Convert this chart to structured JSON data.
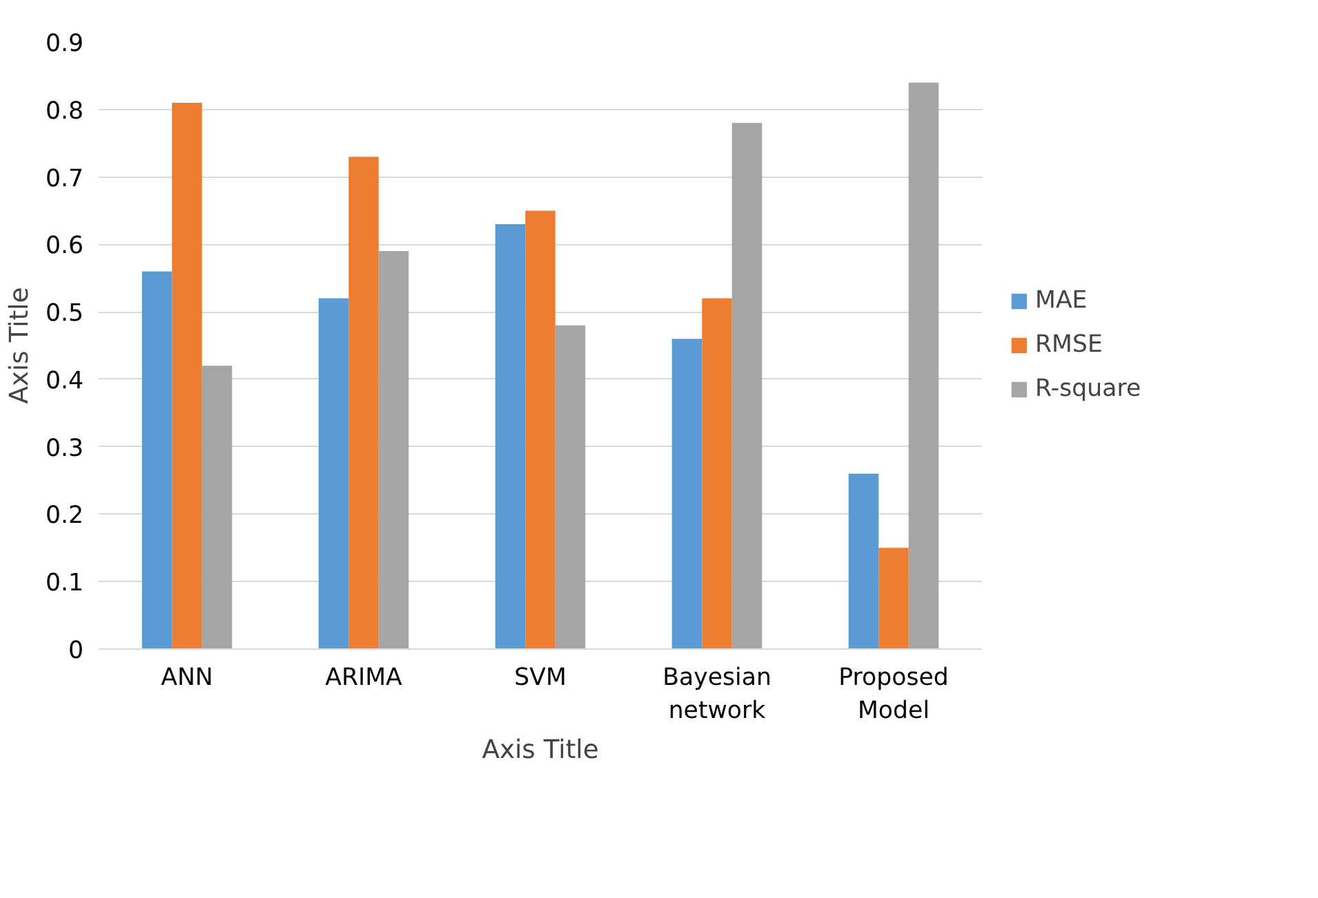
{
  "chart_data": {
    "type": "bar",
    "xlabel": "Axis Title",
    "ylabel": "Axis Title",
    "categories": [
      "ANN",
      "ARIMA",
      "SVM",
      "Bayesian\nnetwork",
      "Proposed\nModel"
    ],
    "series": [
      {
        "name": "MAE",
        "color": "#5b9bd5",
        "values": [
          0.56,
          0.52,
          0.63,
          0.46,
          0.26
        ]
      },
      {
        "name": "RMSE",
        "color": "#ed7d31",
        "values": [
          0.81,
          0.73,
          0.65,
          0.52,
          0.15
        ]
      },
      {
        "name": "R-square",
        "color": "#a5a5a5",
        "values": [
          0.42,
          0.59,
          0.48,
          0.78,
          0.84
        ]
      }
    ],
    "ylim": [
      0,
      0.9
    ],
    "yticks": [
      0,
      0.1,
      0.2,
      0.3,
      0.4,
      0.5,
      0.6,
      0.7,
      0.8,
      0.9
    ],
    "grid": "y",
    "legend": "right"
  }
}
